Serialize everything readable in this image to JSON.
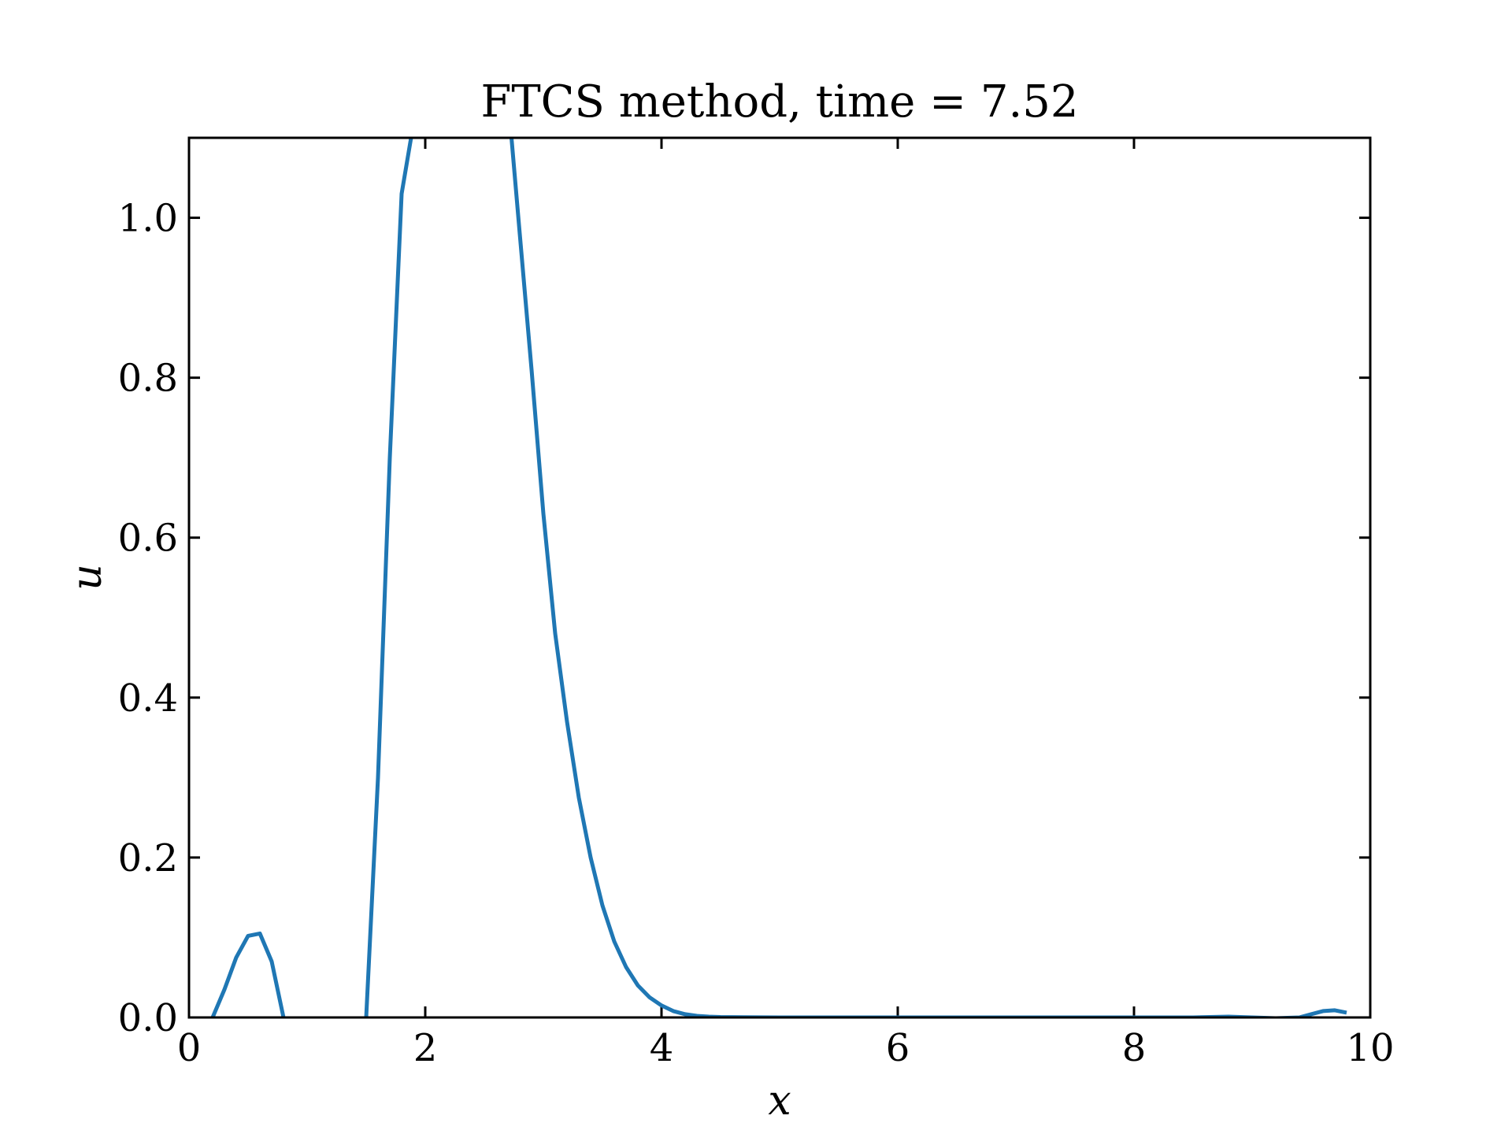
{
  "chart_data": {
    "type": "line",
    "title": "FTCS method, time = 7.52",
    "xlabel": "x",
    "ylabel": "u",
    "xlim": [
      0,
      10
    ],
    "ylim": [
      0,
      1.1
    ],
    "xticks": [
      0,
      2,
      4,
      6,
      8,
      10
    ],
    "xtick_labels": [
      "0",
      "2",
      "4",
      "6",
      "8",
      "10"
    ],
    "yticks": [
      0.0,
      0.2,
      0.4,
      0.6,
      0.8,
      1.0
    ],
    "ytick_labels": [
      "0.0",
      "0.2",
      "0.4",
      "0.6",
      "0.8",
      "1.0"
    ],
    "grid": false,
    "line_color": "#1f77b4",
    "series": [
      {
        "x": [
          0.2,
          0.3,
          0.4,
          0.5,
          0.6,
          0.7,
          0.8,
          null,
          1.5,
          1.6,
          1.7,
          1.8,
          1.88,
          null,
          2.73,
          2.8,
          2.9,
          3.0,
          3.1,
          3.2,
          3.3,
          3.4,
          3.5,
          3.6,
          3.7,
          3.8,
          3.9,
          4.0,
          4.1,
          4.2,
          4.3,
          4.4,
          4.5,
          4.7,
          5.0,
          6.0,
          7.0,
          8.0,
          8.5,
          8.8,
          9.0,
          9.2,
          9.4,
          9.5,
          9.6,
          9.7,
          9.8
        ],
        "values": [
          0.0,
          0.035,
          0.075,
          0.102,
          0.105,
          0.07,
          0.0,
          null,
          0.0,
          0.3,
          0.7,
          1.03,
          1.1,
          null,
          1.1,
          0.98,
          0.81,
          0.63,
          0.48,
          0.37,
          0.275,
          0.2,
          0.14,
          0.095,
          0.063,
          0.04,
          0.025,
          0.015,
          0.008,
          0.004,
          0.002,
          0.001,
          0.0005,
          0.0002,
          0.0,
          0.0,
          0.0,
          0.0,
          0.0,
          0.001,
          0.0,
          -0.001,
          0.0,
          0.004,
          0.008,
          0.009,
          0.006
        ]
      }
    ]
  }
}
